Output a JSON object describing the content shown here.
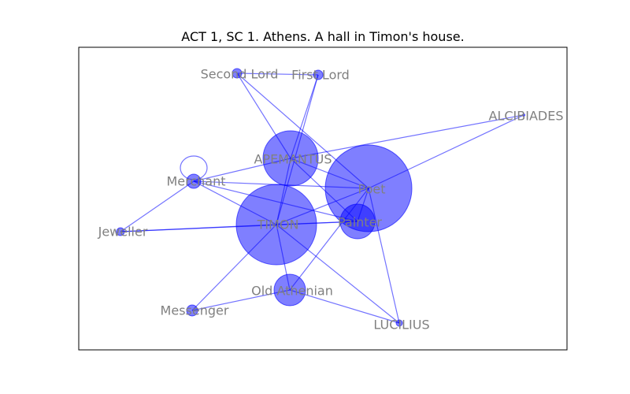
{
  "figure": {
    "title": "ACT 1, SC 1. Athens. A hall in Timon's house.",
    "colors": {
      "node": "#0000ff",
      "edge": "#0000ff",
      "label": "#808080"
    }
  },
  "nodes": [
    {
      "id": "second_lord",
      "label": "Second Lord",
      "size": 1
    },
    {
      "id": "first_lord",
      "label": "First Lord",
      "size": 1
    },
    {
      "id": "alcibiades",
      "label": "ALCIBIADES",
      "size": 0
    },
    {
      "id": "apemantus",
      "label": "APEMANTUS",
      "size": 6
    },
    {
      "id": "poet",
      "label": "Poet",
      "size": 10
    },
    {
      "id": "merchant",
      "label": "Merchant",
      "size": 1.3
    },
    {
      "id": "jeweller",
      "label": "Jeweller",
      "size": 0.7
    },
    {
      "id": "timon",
      "label": "TIMON",
      "size": 9
    },
    {
      "id": "painter",
      "label": "Painter",
      "size": 4
    },
    {
      "id": "old_athenian",
      "label": "Old Athenian",
      "size": 3.5
    },
    {
      "id": "messenger",
      "label": "Messenger",
      "size": 1
    },
    {
      "id": "lucilius",
      "label": "LUCILIUS",
      "size": 0.5
    }
  ],
  "edges": [
    [
      "second_lord",
      "first_lord"
    ],
    [
      "second_lord",
      "apemantus"
    ],
    [
      "second_lord",
      "poet"
    ],
    [
      "first_lord",
      "apemantus"
    ],
    [
      "first_lord",
      "timon"
    ],
    [
      "apemantus",
      "alcibiades"
    ],
    [
      "poet",
      "alcibiades"
    ],
    [
      "apemantus",
      "timon"
    ],
    [
      "apemantus",
      "poet"
    ],
    [
      "apemantus",
      "painter"
    ],
    [
      "apemantus",
      "merchant"
    ],
    [
      "merchant",
      "merchant"
    ],
    [
      "merchant",
      "jeweller"
    ],
    [
      "merchant",
      "timon"
    ],
    [
      "merchant",
      "poet"
    ],
    [
      "merchant",
      "painter"
    ],
    [
      "jeweller",
      "timon"
    ],
    [
      "jeweller",
      "painter"
    ],
    [
      "timon",
      "poet"
    ],
    [
      "timon",
      "painter"
    ],
    [
      "timon",
      "messenger"
    ],
    [
      "timon",
      "lucilius"
    ],
    [
      "timon",
      "old_athenian"
    ],
    [
      "painter",
      "poet"
    ],
    [
      "poet",
      "lucilius"
    ],
    [
      "poet",
      "old_athenian"
    ],
    [
      "old_athenian",
      "messenger"
    ],
    [
      "old_athenian",
      "lucilius"
    ]
  ]
}
